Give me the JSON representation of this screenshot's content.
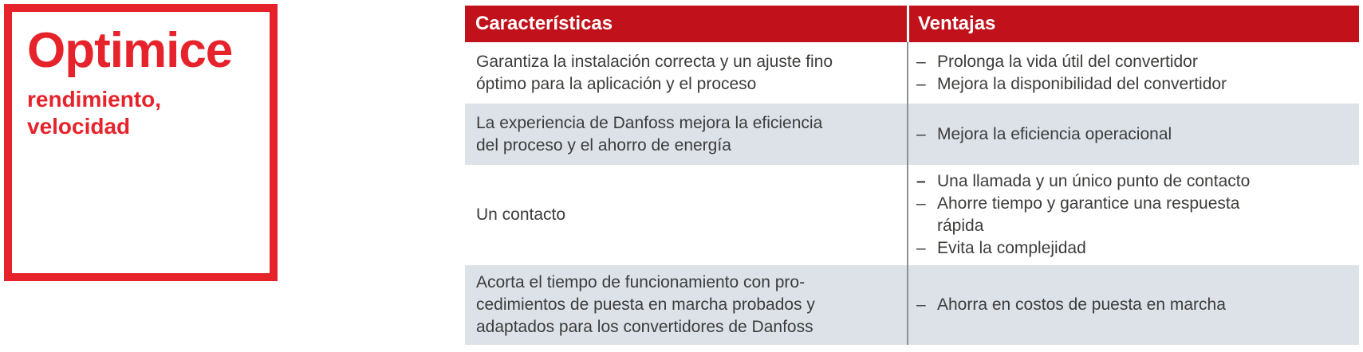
{
  "panel": {
    "title": "Optimice",
    "subtitle_lines": [
      "rendimiento,",
      "velocidad"
    ]
  },
  "table": {
    "bullet_char": "–",
    "header": {
      "features": "Características",
      "benefits": "Ventajas"
    },
    "rows": [
      {
        "feature_lines": [
          "Garantiza la instalación correcta y un ajuste fino",
          "óptimo para la aplicación y el proceso"
        ],
        "benefits": [
          {
            "lines": [
              "Prolonga la vida útil del convertidor"
            ]
          },
          {
            "lines": [
              "Mejora la disponibilidad del convertidor"
            ]
          }
        ]
      },
      {
        "feature_lines": [
          "La experiencia de Danfoss mejora la eficiencia",
          "del proceso y el ahorro de energía"
        ],
        "benefits": [
          {
            "lines": [
              "Mejora la eficiencia operacional"
            ]
          }
        ]
      },
      {
        "feature_lines": [
          "Un contacto"
        ],
        "benefits": [
          {
            "lines": [
              "Una llamada y un único punto de contacto"
            ]
          },
          {
            "lines": [
              "Ahorre tiempo y garantice una respuesta",
              "rápida"
            ]
          },
          {
            "lines": [
              "Evita la complejidad"
            ]
          }
        ]
      },
      {
        "feature_lines": [
          "Acorta el tiempo de funcionamiento con pro-",
          "cedimientos de puesta en marcha probados y",
          "adaptados para los convertidores de Danfoss"
        ],
        "benefits": [
          {
            "lines": [
              "Ahorra en costos de puesta en marcha"
            ]
          }
        ]
      }
    ]
  },
  "colors": {
    "brand_red": "#e6232b",
    "header_red": "#c1121b",
    "row_alt_gray": "#dde2e9",
    "text_dark": "#3c3c3b",
    "divider_gray": "#8d8f92"
  }
}
